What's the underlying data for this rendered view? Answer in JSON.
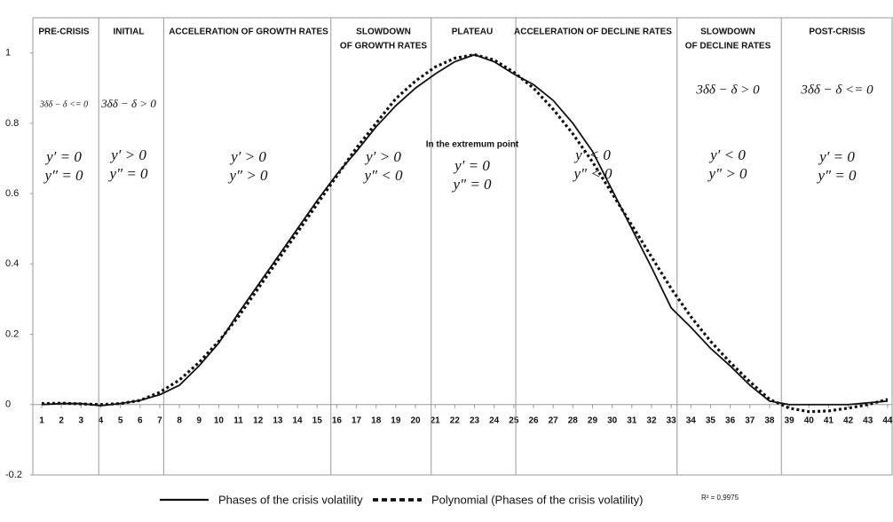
{
  "chart_data": {
    "type": "line",
    "x": [
      1,
      2,
      3,
      4,
      5,
      6,
      7,
      8,
      9,
      10,
      11,
      12,
      13,
      14,
      15,
      16,
      17,
      18,
      19,
      20,
      21,
      22,
      23,
      24,
      25,
      26,
      27,
      28,
      29,
      30,
      31,
      32,
      33,
      34,
      35,
      36,
      37,
      38,
      39,
      40,
      41,
      42,
      43,
      44
    ],
    "xlim": [
      0.55,
      44.23
    ],
    "xticks": [
      1,
      2,
      3,
      4,
      5,
      6,
      7,
      8,
      9,
      10,
      11,
      12,
      13,
      14,
      15,
      16,
      17,
      18,
      19,
      20,
      21,
      22,
      23,
      24,
      25,
      26,
      27,
      28,
      29,
      30,
      31,
      32,
      33,
      34,
      35,
      36,
      37,
      38,
      39,
      40,
      41,
      42,
      43,
      44
    ],
    "ylim": [
      -0.2,
      1.1
    ],
    "yticks": [
      1,
      0.8,
      0.6,
      0.4,
      0.2,
      0,
      -0.2
    ],
    "series": [
      {
        "name": "Phases of the crisis volatility",
        "color": "#111111",
        "dash": "solid",
        "values": [
          0,
          0.003,
          0.003,
          -0.003,
          0.003,
          0.012,
          0.028,
          0.055,
          0.11,
          0.175,
          0.26,
          0.34,
          0.42,
          0.5,
          0.58,
          0.655,
          0.72,
          0.79,
          0.85,
          0.9,
          0.94,
          0.975,
          0.995,
          0.975,
          0.94,
          0.91,
          0.865,
          0.8,
          0.72,
          0.61,
          0.5,
          0.39,
          0.275,
          0.22,
          0.16,
          0.11,
          0.055,
          0.01,
          0,
          0,
          0,
          0,
          0.005,
          0.01
        ]
      },
      {
        "name": "Polynomial (Phases of the crisis volatility)",
        "color": "#111111",
        "dash": "dotted",
        "values": [
          0.003,
          0.004,
          0.002,
          0,
          0.003,
          0.012,
          0.035,
          0.07,
          0.12,
          0.18,
          0.25,
          0.33,
          0.41,
          0.49,
          0.57,
          0.65,
          0.73,
          0.8,
          0.87,
          0.92,
          0.96,
          0.985,
          0.995,
          0.98,
          0.945,
          0.9,
          0.84,
          0.77,
          0.69,
          0.6,
          0.51,
          0.42,
          0.33,
          0.25,
          0.18,
          0.12,
          0.065,
          0.015,
          -0.01,
          -0.02,
          -0.018,
          -0.01,
          0,
          0.015
        ]
      }
    ],
    "phase_boundaries": [
      3.9,
      7.2,
      15.7,
      20.8,
      25.1,
      33.3,
      38.6
    ],
    "phases": [
      {
        "label": [
          "PRE-CRISIS"
        ],
        "condition": "3δδ − δ <= 0",
        "derivatives": [
          "y′ = 0",
          "y″ = 0"
        ]
      },
      {
        "label": [
          "INITIAL"
        ],
        "condition": "3δδ − δ > 0",
        "derivatives": [
          "y′ > 0",
          "y″ = 0"
        ]
      },
      {
        "label": [
          "ACCELERATION OF GROWTH RATES"
        ],
        "derivatives": [
          "y′ > 0",
          "y″ > 0"
        ]
      },
      {
        "label": [
          "SLOWDOWN",
          "OF GROWTH RATES"
        ],
        "derivatives": [
          "y′ > 0",
          "y″ < 0"
        ]
      },
      {
        "label": [
          "PLATEAU"
        ],
        "note": "In the extremum point",
        "derivatives": [
          "y′ = 0",
          "y″ = 0"
        ]
      },
      {
        "label": [
          "ACCELERATION OF DECLINE RATES"
        ],
        "derivatives": [
          "y′ < 0",
          "y″ < 0"
        ]
      },
      {
        "label": [
          "SLOWDOWN",
          "OF DECLINE RATES"
        ],
        "condition": "3δδ − δ > 0",
        "derivatives": [
          "y′ < 0",
          "y″ > 0"
        ]
      },
      {
        "label": [
          "POST-CRISIS"
        ],
        "condition": "3δδ − δ <= 0",
        "derivatives": [
          "y′ = 0",
          "y″ = 0"
        ]
      }
    ],
    "annotation": "R² = 0,9975"
  }
}
